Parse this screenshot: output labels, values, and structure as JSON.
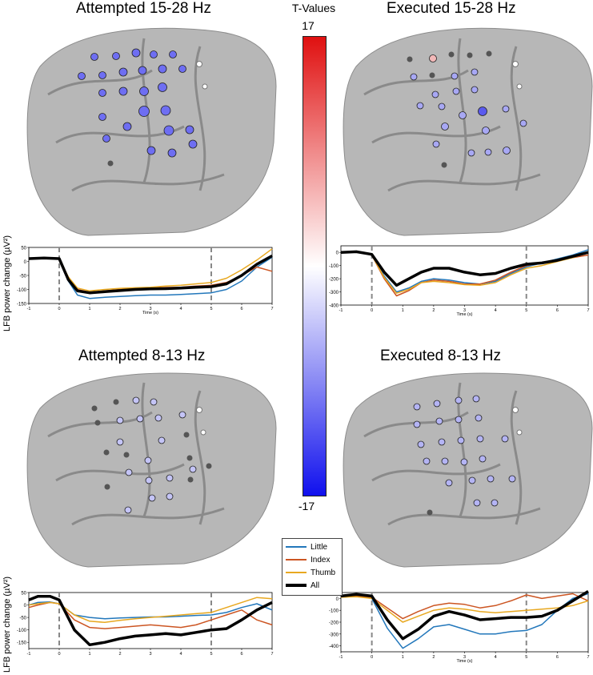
{
  "panels": {
    "att_beta": {
      "title": "Attempted  15-28 Hz"
    },
    "exe_beta": {
      "title": "Executed  15-28 Hz"
    },
    "att_alpha": {
      "title": "Attempted  8-13 Hz"
    },
    "exe_alpha": {
      "title": "Executed  8-13 Hz"
    }
  },
  "colorbar": {
    "title": "T-Values",
    "max_label": "17",
    "min_label": "-17",
    "top_color": "#e01010",
    "mid_color": "#ffffff",
    "bottom_color": "#1010ee"
  },
  "y_axis_label": "LFB power change (µV²)",
  "legend": {
    "items": [
      {
        "label": "Little",
        "color": "#2277bb"
      },
      {
        "label": "Index",
        "color": "#cc5522"
      },
      {
        "label": "Thumb",
        "color": "#e8a820"
      },
      {
        "label": "All",
        "color": "#000000"
      }
    ]
  },
  "chart_data": [
    {
      "type": "line",
      "panel": "att_beta",
      "xlabel": "Time (s)",
      "xlim": [
        -1,
        7
      ],
      "ylim": [
        -150,
        50
      ],
      "xticks": [
        -1,
        0,
        1,
        2,
        3,
        4,
        5,
        6,
        7
      ],
      "yticks": [
        50,
        0,
        -50,
        -100,
        -150
      ],
      "vlines": [
        0,
        5
      ],
      "x": [
        -1,
        -0.5,
        0,
        0.3,
        0.6,
        1,
        1.5,
        2,
        2.5,
        3,
        3.5,
        4,
        4.5,
        5,
        5.5,
        6,
        6.5,
        7
      ],
      "series": [
        {
          "name": "Little",
          "values": [
            10,
            12,
            10,
            -70,
            -120,
            -132,
            -128,
            -125,
            -122,
            -120,
            -120,
            -118,
            -115,
            -112,
            -100,
            -70,
            -20,
            15
          ]
        },
        {
          "name": "Index",
          "values": [
            10,
            12,
            12,
            -60,
            -100,
            -110,
            -105,
            -100,
            -96,
            -95,
            -93,
            -92,
            -88,
            -85,
            -75,
            -50,
            -20,
            -35
          ]
        },
        {
          "name": "Thumb",
          "values": [
            10,
            12,
            10,
            -55,
            -95,
            -105,
            -100,
            -96,
            -94,
            -92,
            -88,
            -85,
            -80,
            -75,
            -60,
            -30,
            5,
            45
          ]
        },
        {
          "name": "All",
          "values": [
            10,
            12,
            10,
            -65,
            -105,
            -112,
            -108,
            -104,
            -100,
            -98,
            -97,
            -95,
            -92,
            -90,
            -80,
            -50,
            -10,
            20
          ]
        }
      ]
    },
    {
      "type": "line",
      "panel": "exe_beta",
      "xlabel": "Time (s)",
      "xlim": [
        -1,
        7
      ],
      "ylim": [
        -400,
        50
      ],
      "xticks": [
        -1,
        0,
        1,
        2,
        3,
        4,
        5,
        6,
        7
      ],
      "yticks": [
        0,
        -100,
        -200,
        -300,
        -400
      ],
      "vlines": [
        0,
        5
      ],
      "x": [
        -1,
        -0.5,
        0,
        0.4,
        0.8,
        1.2,
        1.6,
        2,
        2.5,
        3,
        3.5,
        4,
        4.5,
        5,
        5.5,
        6,
        6.5,
        7
      ],
      "series": [
        {
          "name": "Little",
          "values": [
            0,
            5,
            -20,
            -180,
            -300,
            -270,
            -220,
            -200,
            -210,
            -230,
            -240,
            -220,
            -160,
            -110,
            -80,
            -50,
            -20,
            20
          ]
        },
        {
          "name": "Index",
          "values": [
            0,
            5,
            -20,
            -200,
            -330,
            -290,
            -230,
            -210,
            -220,
            -240,
            -240,
            -210,
            -150,
            -100,
            -80,
            -60,
            -40,
            -20
          ]
        },
        {
          "name": "Thumb",
          "values": [
            0,
            5,
            -20,
            -190,
            -310,
            -280,
            -230,
            -220,
            -230,
            -245,
            -250,
            -230,
            -170,
            -120,
            -100,
            -70,
            -40,
            0
          ]
        },
        {
          "name": "All",
          "values": [
            0,
            5,
            -15,
            -150,
            -250,
            -200,
            -150,
            -120,
            -120,
            -150,
            -170,
            -160,
            -120,
            -90,
            -80,
            -60,
            -30,
            0
          ]
        }
      ]
    },
    {
      "type": "line",
      "panel": "att_alpha",
      "xlabel": "",
      "xlim": [
        -1,
        7
      ],
      "ylim": [
        -175,
        50
      ],
      "xticks": [
        -1,
        0,
        1,
        2,
        3,
        4,
        5,
        6,
        7
      ],
      "yticks": [
        50,
        0,
        -50,
        -100,
        -150
      ],
      "vlines": [
        0,
        5
      ],
      "x": [
        -1,
        -0.7,
        -0.3,
        0,
        0.5,
        1,
        1.5,
        2,
        2.5,
        3,
        3.5,
        4,
        4.5,
        5,
        5.5,
        6,
        6.5,
        7
      ],
      "series": [
        {
          "name": "Little",
          "values": [
            0,
            10,
            12,
            5,
            -40,
            -50,
            -55,
            -52,
            -50,
            -48,
            -48,
            -45,
            -42,
            -40,
            -30,
            -10,
            5,
            -20
          ]
        },
        {
          "name": "Index",
          "values": [
            -10,
            0,
            10,
            5,
            -60,
            -90,
            -95,
            -90,
            -85,
            -80,
            -85,
            -90,
            -80,
            -60,
            -40,
            -20,
            -60,
            -80
          ]
        },
        {
          "name": "Thumb",
          "values": [
            0,
            5,
            10,
            5,
            -40,
            -65,
            -70,
            -62,
            -55,
            -50,
            -45,
            -40,
            -35,
            -30,
            -10,
            10,
            30,
            25
          ]
        },
        {
          "name": "All",
          "values": [
            20,
            35,
            35,
            20,
            -100,
            -160,
            -150,
            -135,
            -125,
            -120,
            -115,
            -120,
            -110,
            -100,
            -95,
            -60,
            -20,
            10
          ]
        }
      ]
    },
    {
      "type": "line",
      "panel": "exe_alpha",
      "xlabel": "Time (s)",
      "xlim": [
        -1,
        7
      ],
      "ylim": [
        -450,
        50
      ],
      "xticks": [
        -1,
        0,
        1,
        2,
        3,
        4,
        5,
        6,
        7
      ],
      "yticks": [
        0,
        -100,
        -200,
        -300,
        -400
      ],
      "vlines": [
        0,
        5
      ],
      "x": [
        -1,
        -0.5,
        0,
        0.5,
        1,
        1.5,
        2,
        2.5,
        3,
        3.5,
        4,
        4.5,
        5,
        5.5,
        6,
        6.5,
        7
      ],
      "series": [
        {
          "name": "Little",
          "values": [
            10,
            20,
            0,
            -250,
            -420,
            -340,
            -240,
            -220,
            -260,
            -300,
            -300,
            -280,
            -270,
            -220,
            -100,
            0,
            40
          ]
        },
        {
          "name": "Index",
          "values": [
            10,
            20,
            10,
            -80,
            -170,
            -110,
            -60,
            -40,
            -50,
            -80,
            -60,
            -20,
            30,
            0,
            20,
            40,
            -20
          ]
        },
        {
          "name": "Thumb",
          "values": [
            10,
            15,
            0,
            -100,
            -200,
            -150,
            -100,
            -80,
            -90,
            -110,
            -120,
            -110,
            -100,
            -90,
            -80,
            -60,
            -20
          ]
        },
        {
          "name": "All",
          "values": [
            20,
            35,
            20,
            -180,
            -340,
            -260,
            -150,
            -110,
            -140,
            -180,
            -170,
            -160,
            -160,
            -150,
            -100,
            -20,
            60
          ]
        }
      ]
    }
  ]
}
